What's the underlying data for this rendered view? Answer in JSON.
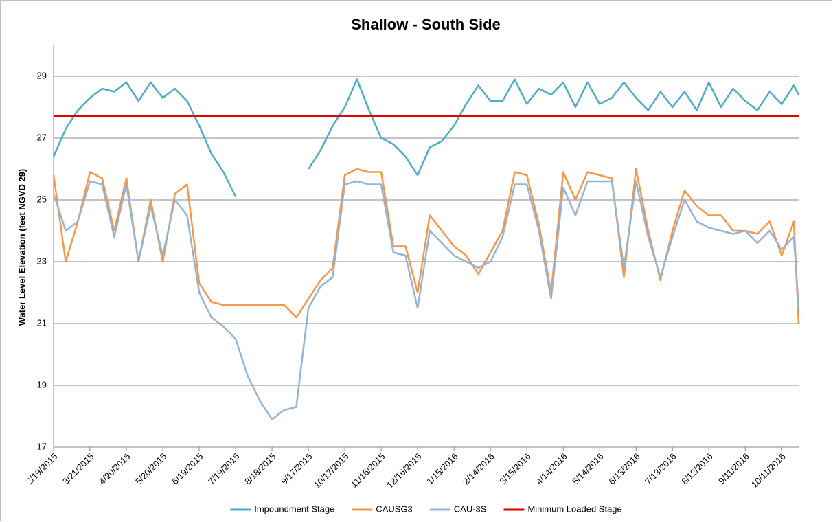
{
  "chart_data": {
    "type": "line",
    "title": "Shallow - South Side",
    "y_label": "Water Level Elevation (feet NGVD 29)",
    "x": [
      "2/19/2015",
      "3/1/2015",
      "3/11/2015",
      "3/21/2015",
      "3/31/2015",
      "4/10/2015",
      "4/20/2015",
      "4/30/2015",
      "5/10/2015",
      "5/20/2015",
      "5/30/2015",
      "6/9/2015",
      "6/19/2015",
      "6/29/2015",
      "7/9/2015",
      "7/19/2015",
      "7/29/2015",
      "8/8/2015",
      "8/18/2015",
      "8/28/2015",
      "9/7/2015",
      "9/17/2015",
      "9/27/2015",
      "10/7/2015",
      "10/17/2015",
      "10/27/2015",
      "11/6/2015",
      "11/16/2015",
      "11/26/2015",
      "12/6/2015",
      "12/16/2015",
      "12/26/2015",
      "1/5/2016",
      "1/15/2016",
      "1/25/2016",
      "2/4/2016",
      "2/14/2016",
      "2/24/2016",
      "3/5/2016",
      "3/15/2016",
      "3/25/2016",
      "4/4/2016",
      "4/14/2016",
      "4/24/2016",
      "5/4/2016",
      "5/14/2016",
      "5/24/2016",
      "6/3/2016",
      "6/13/2016",
      "6/23/2016",
      "7/3/2016",
      "7/13/2016",
      "7/23/2016",
      "8/2/2016",
      "8/12/2016",
      "8/22/2016",
      "9/1/2016",
      "9/11/2016",
      "9/21/2016",
      "10/1/2016",
      "10/11/2016",
      "10/21/2016",
      "10/25/2016"
    ],
    "series": [
      {
        "name": "Impoundment Stage",
        "color": "#4bacc6",
        "values": [
          26.4,
          27.3,
          27.9,
          28.3,
          28.6,
          28.5,
          28.8,
          28.2,
          28.8,
          28.3,
          28.6,
          28.2,
          27.4,
          26.5,
          25.9,
          25.1,
          null,
          null,
          null,
          null,
          null,
          26.0,
          26.6,
          27.4,
          28.0,
          28.9,
          27.9,
          27.0,
          26.8,
          26.4,
          25.8,
          26.7,
          26.9,
          27.4,
          28.1,
          28.7,
          28.2,
          28.2,
          28.9,
          28.1,
          28.6,
          28.4,
          28.8,
          28.0,
          28.8,
          28.1,
          28.3,
          28.8,
          28.3,
          27.9,
          28.5,
          28.0,
          28.5,
          27.9,
          28.8,
          28.0,
          28.6,
          28.2,
          27.9,
          28.5,
          28.1,
          28.7,
          28.4
        ]
      },
      {
        "name": "CAUSG3",
        "color": "#f79646",
        "values": [
          25.8,
          23.0,
          24.3,
          25.9,
          25.7,
          24.0,
          25.7,
          23.0,
          25.0,
          23.0,
          25.2,
          25.5,
          22.3,
          21.7,
          21.6,
          21.6,
          21.6,
          21.6,
          21.6,
          21.6,
          21.2,
          21.8,
          22.4,
          22.8,
          25.8,
          26.0,
          25.9,
          25.9,
          23.5,
          23.5,
          22.0,
          24.5,
          24.0,
          23.5,
          23.2,
          22.6,
          23.3,
          24.0,
          25.9,
          25.8,
          24.2,
          22.0,
          25.9,
          25.0,
          25.9,
          25.8,
          25.7,
          22.5,
          26.0,
          24.0,
          22.4,
          24.0,
          25.3,
          24.8,
          24.5,
          24.5,
          24.0,
          24.0,
          23.9,
          24.3,
          23.2,
          24.3,
          21.0
        ]
      },
      {
        "name": "CAU-3S",
        "color": "#95b3d7",
        "values": [
          25.2,
          24.0,
          24.3,
          25.6,
          25.5,
          23.8,
          25.5,
          23.0,
          24.8,
          23.2,
          25.0,
          24.5,
          22.0,
          21.2,
          20.9,
          20.5,
          19.3,
          18.5,
          17.9,
          18.2,
          18.3,
          21.5,
          22.2,
          22.5,
          25.5,
          25.6,
          25.5,
          25.5,
          23.3,
          23.2,
          21.5,
          24.0,
          23.6,
          23.2,
          23.0,
          22.8,
          23.0,
          23.8,
          25.5,
          25.5,
          24.0,
          21.8,
          25.4,
          24.5,
          25.6,
          25.6,
          25.6,
          22.8,
          25.6,
          23.8,
          22.5,
          23.8,
          25.0,
          24.3,
          24.1,
          24.0,
          23.9,
          24.0,
          23.6,
          24.0,
          23.4,
          23.8,
          21.5
        ]
      }
    ],
    "reference_lines": [
      {
        "name": "Minimum Loaded Stage",
        "color": "#e00000",
        "value": 27.7
      }
    ],
    "xlim": [
      "2/19/2015",
      "10/25/2016"
    ],
    "xticks": [
      "2/19/2015",
      "3/21/2015",
      "4/20/2015",
      "5/20/2015",
      "6/19/2015",
      "7/19/2015",
      "8/18/2015",
      "9/17/2015",
      "10/17/2015",
      "11/16/2015",
      "12/16/2015",
      "1/15/2016",
      "2/14/2016",
      "3/15/2016",
      "4/14/2016",
      "5/14/2016",
      "6/13/2016",
      "7/13/2016",
      "8/12/2016",
      "9/11/2016",
      "10/11/2016"
    ],
    "ylim": [
      17,
      30
    ],
    "yticks": [
      17,
      19,
      21,
      23,
      25,
      27,
      29
    ],
    "grid": true,
    "legend": "bottom"
  }
}
